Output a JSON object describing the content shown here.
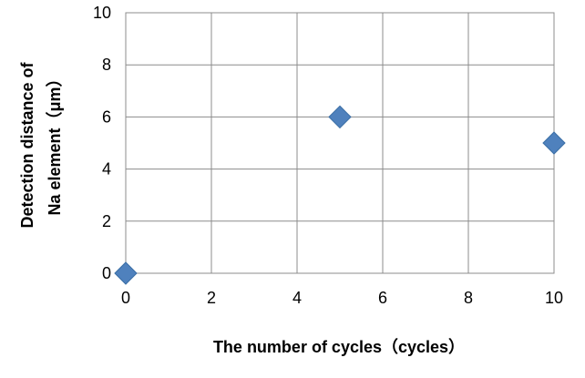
{
  "chart_data": {
    "type": "scatter",
    "title": "",
    "xlabel": "The number of cycles（cycles）",
    "ylabel_lines": [
      "Detection distance of",
      "Na element（μm）"
    ],
    "xlim": [
      0,
      10
    ],
    "ylim": [
      0,
      10
    ],
    "xticks": [
      0,
      2,
      4,
      6,
      8,
      10
    ],
    "yticks": [
      0,
      2,
      4,
      6,
      8,
      10
    ],
    "grid": true,
    "marker": "diamond",
    "color": "#4F81BD",
    "series": [
      {
        "x": [
          0,
          5,
          10
        ],
        "y": [
          0,
          6,
          5
        ]
      }
    ]
  }
}
